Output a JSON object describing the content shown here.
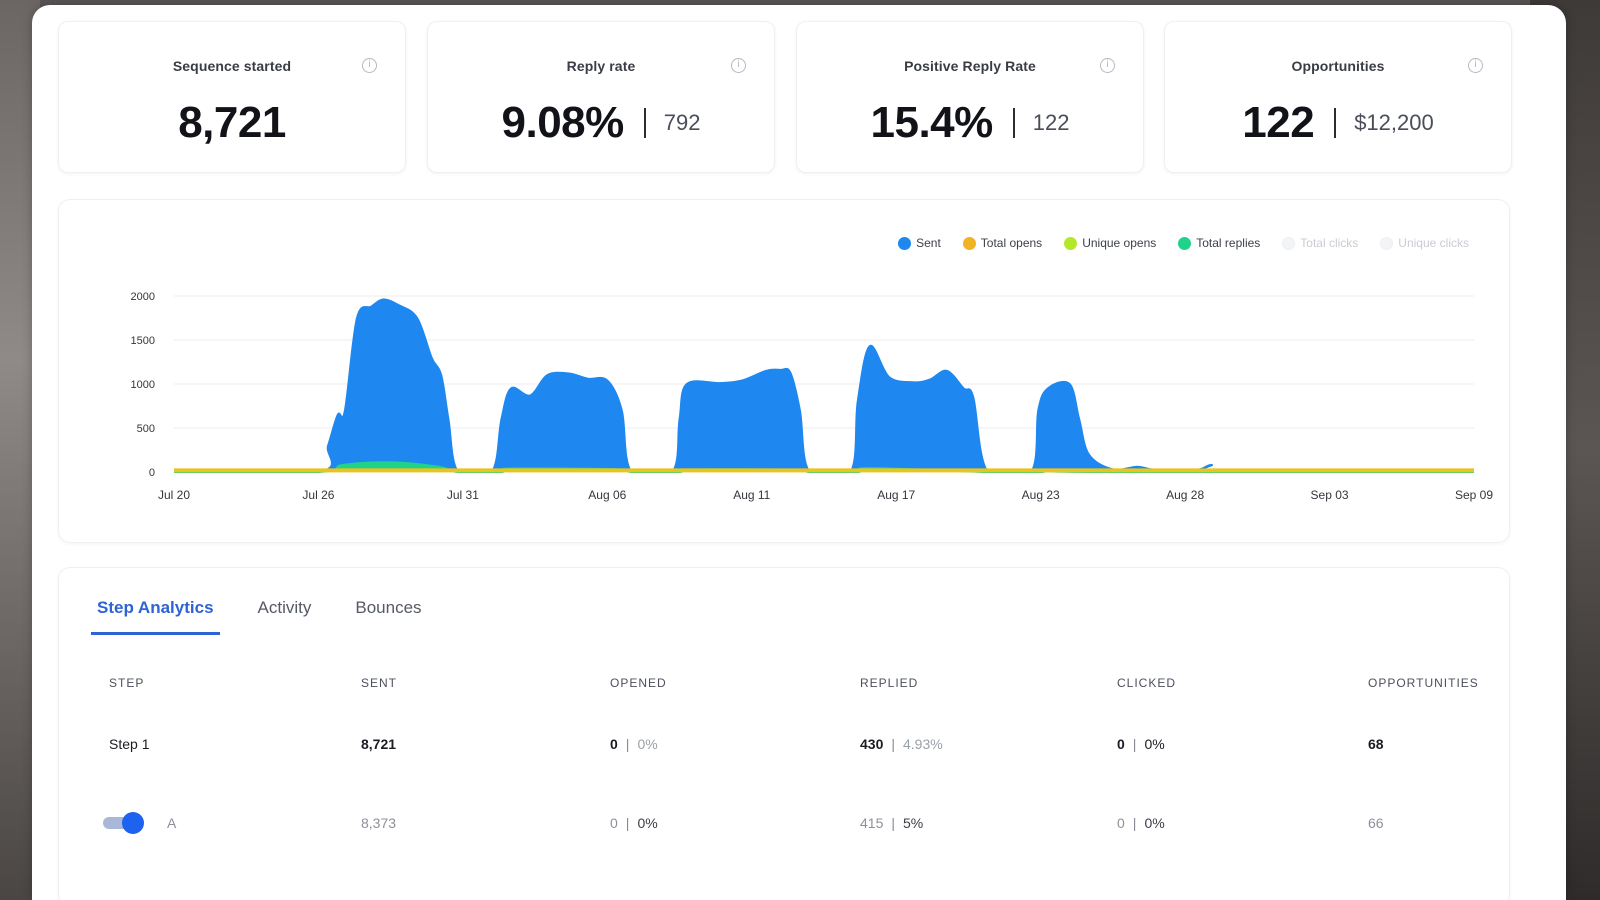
{
  "stats": [
    {
      "title": "Sequence started",
      "value": "8,721",
      "secondary": ""
    },
    {
      "title": "Reply rate",
      "value": "9.08%",
      "secondary": "792"
    },
    {
      "title": "Positive Reply Rate",
      "value": "15.4%",
      "secondary": "122"
    },
    {
      "title": "Opportunities",
      "value": "122",
      "secondary": "$12,200"
    }
  ],
  "info_icon_glyph": "i",
  "legend": [
    {
      "label": "Sent",
      "color": "#1e88f0",
      "faded": false
    },
    {
      "label": "Total opens",
      "color": "#f0b323",
      "faded": false
    },
    {
      "label": "Unique opens",
      "color": "#b3e82a",
      "faded": false
    },
    {
      "label": "Total replies",
      "color": "#1fd38a",
      "faded": false
    },
    {
      "label": "Total clicks",
      "color": "#f3f4f6",
      "faded": true
    },
    {
      "label": "Unique clicks",
      "color": "#f3f4f6",
      "faded": true
    }
  ],
  "chart_data": {
    "type": "area",
    "x_ticks": [
      "Jul 20",
      "Jul 26",
      "Jul 31",
      "Aug 06",
      "Aug 11",
      "Aug 17",
      "Aug 23",
      "Aug 28",
      "Sep 03",
      "Sep 09"
    ],
    "y_ticks": [
      0,
      500,
      1000,
      1500,
      2000
    ],
    "ylim": [
      0,
      2000
    ],
    "x_range_days": [
      0,
      54
    ],
    "grid": true,
    "legend_position": "top-right",
    "series": [
      {
        "name": "Sent",
        "color": "#1e88f0",
        "points": [
          [
            0,
            0
          ],
          [
            6,
            0
          ],
          [
            6.4,
            300
          ],
          [
            6.8,
            650
          ],
          [
            7.1,
            700
          ],
          [
            7.6,
            1750
          ],
          [
            8.2,
            1880
          ],
          [
            8.7,
            1960
          ],
          [
            9.3,
            1900
          ],
          [
            10.1,
            1750
          ],
          [
            10.7,
            1300
          ],
          [
            11.1,
            1100
          ],
          [
            11.4,
            600
          ],
          [
            11.8,
            0
          ],
          [
            13.2,
            0
          ],
          [
            13.6,
            600
          ],
          [
            14,
            950
          ],
          [
            14.8,
            870
          ],
          [
            15.5,
            1100
          ],
          [
            16.4,
            1120
          ],
          [
            17.2,
            1060
          ],
          [
            18,
            1040
          ],
          [
            18.6,
            700
          ],
          [
            19,
            0
          ],
          [
            20.7,
            0
          ],
          [
            21,
            600
          ],
          [
            21.3,
            1000
          ],
          [
            22.7,
            1010
          ],
          [
            23.6,
            1040
          ],
          [
            24.6,
            1150
          ],
          [
            25.2,
            1160
          ],
          [
            25.6,
            1130
          ],
          [
            26,
            700
          ],
          [
            26.4,
            0
          ],
          [
            28.1,
            0
          ],
          [
            28.4,
            800
          ],
          [
            28.9,
            1430
          ],
          [
            29.7,
            1080
          ],
          [
            30.7,
            1020
          ],
          [
            31.4,
            1050
          ],
          [
            32.1,
            1150
          ],
          [
            32.8,
            950
          ],
          [
            33.2,
            850
          ],
          [
            33.8,
            0
          ],
          [
            35.6,
            0
          ],
          [
            35.9,
            700
          ],
          [
            36.3,
            950
          ],
          [
            37.2,
            1000
          ],
          [
            37.6,
            600
          ],
          [
            38,
            200
          ],
          [
            39,
            30
          ],
          [
            40,
            60
          ],
          [
            40.6,
            30
          ],
          [
            41.6,
            10
          ],
          [
            42.6,
            30
          ],
          [
            43.1,
            80
          ],
          [
            43.8,
            10
          ],
          [
            54,
            10
          ]
        ]
      },
      {
        "name": "Total replies",
        "color": "#1fd38a",
        "points": [
          [
            0,
            0
          ],
          [
            6,
            0
          ],
          [
            7,
            80
          ],
          [
            9,
            110
          ],
          [
            11,
            60
          ],
          [
            11.8,
            0
          ],
          [
            13.6,
            0
          ],
          [
            14,
            40
          ],
          [
            18.6,
            30
          ],
          [
            19,
            0
          ],
          [
            21,
            0
          ],
          [
            21.3,
            30
          ],
          [
            26,
            25
          ],
          [
            26.4,
            0
          ],
          [
            28.4,
            0
          ],
          [
            28.9,
            45
          ],
          [
            33.8,
            0
          ],
          [
            36,
            0
          ],
          [
            36.3,
            25
          ],
          [
            38,
            0
          ],
          [
            54,
            0
          ]
        ]
      },
      {
        "name": "Total opens",
        "color": "#e9c41c",
        "points": [
          [
            0,
            18
          ],
          [
            54,
            18
          ]
        ]
      }
    ]
  },
  "tabs": [
    {
      "label": "Step Analytics",
      "active": true
    },
    {
      "label": "Activity",
      "active": false
    },
    {
      "label": "Bounces",
      "active": false
    }
  ],
  "table": {
    "headers": [
      "STEP",
      "SENT",
      "OPENED",
      "REPLIED",
      "CLICKED",
      "OPPORTUNITIES"
    ],
    "rows": [
      {
        "step": "Step 1",
        "sent": "8,721",
        "opened_count": "0",
        "opened_pct": "0%",
        "replied_count": "430",
        "replied_pct": "4.93%",
        "clicked_count": "0",
        "clicked_pct": "0%",
        "opportunities": "68"
      },
      {
        "step": "A",
        "sent": "8,373",
        "opened_count": "0",
        "opened_pct": "0%",
        "replied_count": "415",
        "replied_pct": "5%",
        "clicked_count": "0",
        "clicked_pct": "0%",
        "opportunities": "66",
        "toggle_on": true
      }
    ]
  },
  "pipe_glyph": "|"
}
